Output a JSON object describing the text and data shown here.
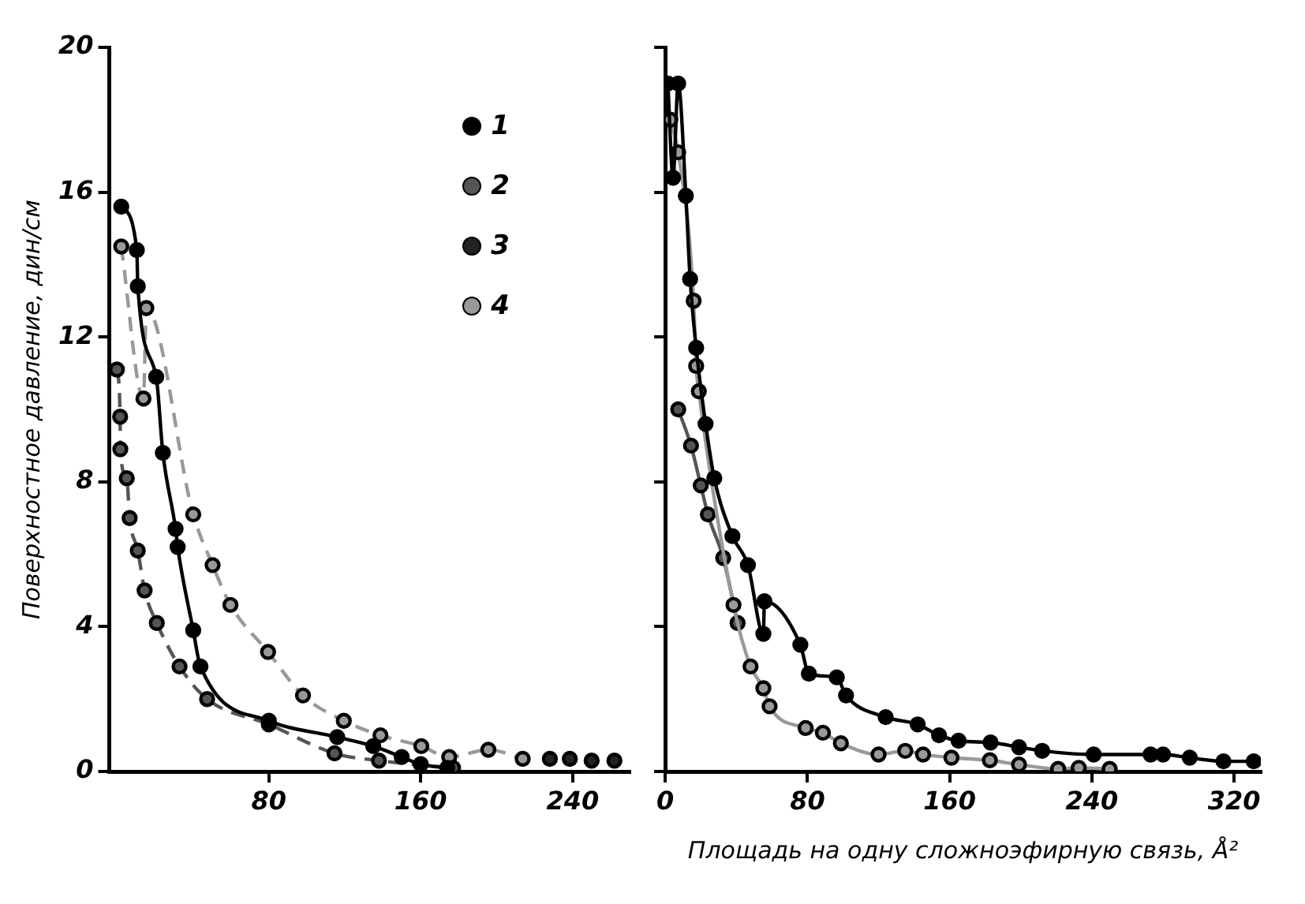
{
  "chart_data": [
    {
      "type": "line",
      "ylabel": "Поверхностное давление, дин/см",
      "xlim": [
        -4,
        270
      ],
      "xticks": [
        80,
        160,
        240
      ],
      "ylim": [
        0,
        20
      ],
      "yticks": [
        0,
        4,
        8,
        12,
        16,
        20
      ],
      "legend": "top right",
      "marker": "circle",
      "series": [
        {
          "name": "1",
          "color": "#000000",
          "line_style": "solid",
          "x": [
            2.3,
            10.5,
            11,
            20.7,
            24.2,
            30.9,
            32,
            40.2,
            44,
            80,
            116,
            135,
            150,
            160,
            174
          ],
          "values": [
            15.6,
            14.4,
            13.4,
            10.9,
            8.8,
            6.7,
            6.2,
            3.9,
            2.9,
            1.4,
            0.95,
            0.7,
            0.4,
            0.2,
            0.1
          ]
        },
        {
          "name": "2",
          "color": "#555555",
          "line_style": "dashed",
          "x": [
            0,
            1.7,
            1.8,
            5.2,
            6.7,
            11,
            14.6,
            21,
            33,
            47.5,
            80,
            114.6,
            138,
            177
          ],
          "values": [
            11.1,
            9.8,
            8.9,
            8.1,
            7.0,
            6.1,
            5.0,
            4.1,
            2.9,
            2.0,
            1.3,
            0.5,
            0.3,
            0.1
          ]
        },
        {
          "name": "3",
          "color": "#222222",
          "type": "scatter",
          "x": [
            228,
            238.5,
            250,
            262
          ],
          "values": [
            0.35,
            0.35,
            0.3,
            0.3
          ]
        },
        {
          "name": "4",
          "color": "#999999",
          "line_style": "dashed",
          "x": [
            2.3,
            14,
            15.5,
            40.2,
            50.4,
            59.8,
            79.6,
            98,
            119.5,
            138.8,
            160.3,
            175,
            195.6,
            213.7
          ],
          "values": [
            14.5,
            10.3,
            12.8,
            7.1,
            5.7,
            4.6,
            3.3,
            2.1,
            1.4,
            1.0,
            0.7,
            0.4,
            0.6,
            0.35
          ]
        }
      ]
    },
    {
      "type": "line",
      "xlabel": "Площадь на одну сложноэфирную связь, Å²",
      "xlim": [
        0,
        335
      ],
      "xticks": [
        0,
        80,
        160,
        240,
        320
      ],
      "ylim": [
        0,
        20
      ],
      "yticks": [
        {
          "value": 0,
          "label": null
        },
        {
          "value": 4,
          "label": null
        },
        {
          "value": 8,
          "label": null
        },
        {
          "value": 12,
          "label": null
        },
        {
          "value": 16,
          "label": null
        },
        {
          "value": 20,
          "label": null
        }
      ],
      "tick_labels": "x",
      "marker": "circle",
      "series": [
        {
          "color": "#000000",
          "line_style": "solid",
          "x": [
            1.5,
            4.4,
            7.3,
            11.6,
            14,
            17.4,
            22.7,
            27.6,
            37.8,
            46.5,
            55.2,
            55.8,
            76,
            80.8,
            96.5,
            101.7,
            124,
            142,
            154,
            165,
            183,
            199,
            212,
            241,
            273,
            280,
            295,
            314,
            331
          ],
          "values": [
            19.0,
            16.4,
            19.0,
            15.9,
            13.6,
            11.7,
            9.6,
            8.1,
            6.5,
            5.7,
            3.8,
            4.7,
            3.5,
            2.7,
            2.6,
            2.1,
            1.5,
            1.3,
            1.0,
            0.85,
            0.8,
            0.67,
            0.57,
            0.47,
            0.47,
            0.47,
            0.38,
            0.28,
            0.28
          ]
        },
        {
          "color": "#999999",
          "line_style": "solid",
          "x": [
            2.9,
            7.3,
            16,
            17.4,
            18.9,
            38.4,
            48,
            55.2,
            58.7,
            79,
            88.7,
            98.8,
            120,
            135,
            145,
            161,
            182.6,
            199,
            221,
            232.6,
            250
          ],
          "values": [
            18.0,
            17.1,
            13.0,
            11.2,
            10.5,
            4.6,
            2.9,
            2.3,
            1.8,
            1.2,
            1.07,
            0.78,
            0.47,
            0.57,
            0.47,
            0.38,
            0.31,
            0.19,
            0.07,
            0.1,
            0.07
          ]
        },
        {
          "color": "#555555",
          "line_style": "solid",
          "x": [
            7.3,
            14.5,
            20,
            24,
            32.6,
            40.7
          ],
          "values": [
            10.0,
            9.0,
            7.9,
            7.1,
            5.9,
            4.1
          ]
        }
      ]
    }
  ]
}
